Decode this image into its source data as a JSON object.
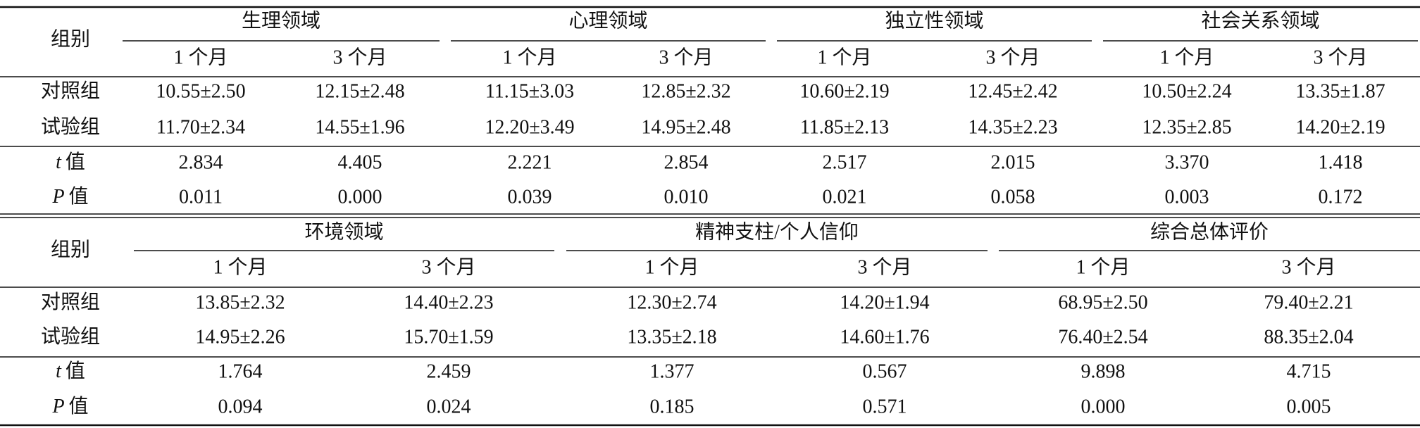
{
  "table1": {
    "corner": "组别",
    "groups": [
      {
        "title": "生理领域",
        "periods": [
          "1 个月",
          "3 个月"
        ]
      },
      {
        "title": "心理领域",
        "periods": [
          "1 个月",
          "3 个月"
        ]
      },
      {
        "title": "独立性领域",
        "periods": [
          "1 个月",
          "3 个月"
        ]
      },
      {
        "title": "社会关系领域",
        "periods": [
          "1 个月",
          "3 个月"
        ]
      }
    ],
    "rows": [
      {
        "label": "对照组",
        "cells": [
          "10.55±2.50",
          "12.15±2.48",
          "11.15±3.03",
          "12.85±2.32",
          "10.60±2.19",
          "12.45±2.42",
          "10.50±2.24",
          "13.35±1.87"
        ]
      },
      {
        "label": "试验组",
        "cells": [
          "11.70±2.34",
          "14.55±1.96",
          "12.20±3.49",
          "14.95±2.48",
          "11.85±2.13",
          "14.35±2.23",
          "12.35±2.85",
          "14.20±2.19"
        ]
      },
      {
        "stat": "t",
        "label": "值",
        "cells": [
          "2.834",
          "4.405",
          "2.221",
          "2.854",
          "2.517",
          "2.015",
          "3.370",
          "1.418"
        ]
      },
      {
        "stat": "P",
        "label": "值",
        "cells": [
          "0.011",
          "0.000",
          "0.039",
          "0.010",
          "0.021",
          "0.058",
          "0.003",
          "0.172"
        ]
      }
    ]
  },
  "table2": {
    "corner": "组别",
    "groups": [
      {
        "title": "环境领域",
        "periods": [
          "1 个月",
          "3 个月"
        ]
      },
      {
        "title": "精神支柱/个人信仰",
        "periods": [
          "1 个月",
          "3 个月"
        ]
      },
      {
        "title": "综合总体评价",
        "periods": [
          "1 个月",
          "3 个月"
        ]
      }
    ],
    "rows": [
      {
        "label": "对照组",
        "cells": [
          "13.85±2.32",
          "14.40±2.23",
          "12.30±2.74",
          "14.20±1.94",
          "68.95±2.50",
          "79.40±2.21"
        ]
      },
      {
        "label": "试验组",
        "cells": [
          "14.95±2.26",
          "15.70±1.59",
          "13.35±2.18",
          "14.60±1.76",
          "76.40±2.54",
          "88.35±2.04"
        ]
      },
      {
        "stat": "t",
        "label": "值",
        "cells": [
          "1.764",
          "2.459",
          "1.377",
          "0.567",
          "9.898",
          "4.715"
        ]
      },
      {
        "stat": "P",
        "label": "值",
        "cells": [
          "0.094",
          "0.024",
          "0.185",
          "0.571",
          "0.000",
          "0.005"
        ]
      }
    ]
  }
}
